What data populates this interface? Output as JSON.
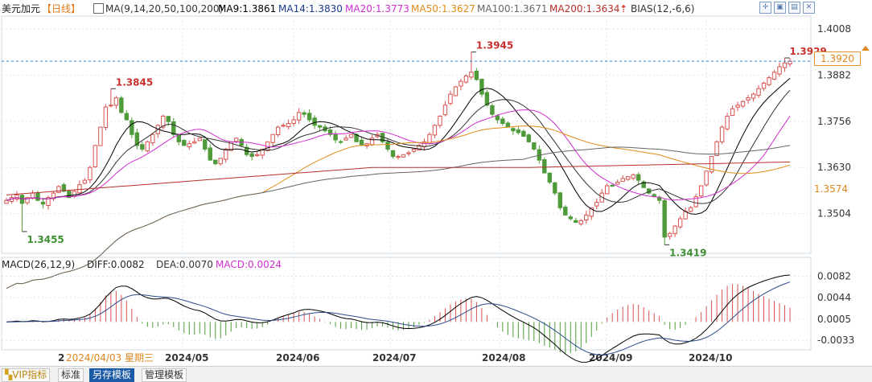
{
  "info": {
    "symbol": "美元加元",
    "period": "【日线】",
    "ma_params": "MA(9,14,20,50,100,200)",
    "ma9": "MA9:1.3861",
    "ma14": "MA14:1.3830",
    "ma20": "MA20:1.3773",
    "ma50": "MA50:1.3627",
    "ma100": "MA100:1.3671",
    "ma200": "MA200:1.3634",
    "bias": "BIAS(12,-6,6)"
  },
  "colors": {
    "up": "#d9534f",
    "down": "#4f9a3a",
    "ma9": "#000000",
    "ma14": "#333333",
    "ma20": "#d12fd0",
    "ma50": "#e08b17",
    "ma100": "#666666",
    "ma200": "#b5302a",
    "grid": "#dde6f0",
    "dash": "#2a7fd6"
  },
  "price_tag": "1.3920",
  "ma_tag": "1.3574",
  "price_ticks": [
    "1.4008",
    "1.3882",
    "1.3756",
    "1.3630",
    "1.3504"
  ],
  "annotations": [
    {
      "text": "1.3845",
      "kind": "high",
      "value": 1.3845
    },
    {
      "text": "1.3455",
      "kind": "low",
      "value": 1.3455
    },
    {
      "text": "1.3945",
      "kind": "high",
      "value": 1.3945
    },
    {
      "text": "1.3419",
      "kind": "low",
      "value": 1.3419
    },
    {
      "text": "1.3929",
      "kind": "high",
      "value": 1.3929
    }
  ],
  "macd": {
    "label": "MACD(26,12,9)",
    "diff": "DIFF:0.0082",
    "dea": "DEA:0.0070",
    "macd": "MACD:0.0024",
    "ticks": [
      "0.0082",
      "0.0044",
      "0.0005",
      "-0.0033"
    ]
  },
  "x_axis": {
    "start_label": "2",
    "start_date": "2024/04/03 星期三",
    "months": [
      "2024/05",
      "2024/06",
      "2024/07",
      "2024/08",
      "2024/09",
      "2024/10"
    ]
  },
  "footer": {
    "vip": "VIP指标",
    "standard": "标准",
    "save_template": "另存模板",
    "manage_template": "管理模板"
  },
  "chart_data": {
    "type": "candlestick",
    "title": "美元加元【日线】",
    "ylim": [
      1.34,
      1.4008
    ],
    "close_series": [
      1.354,
      1.3548,
      1.3555,
      1.3532,
      1.3548,
      1.356,
      1.354,
      1.353,
      1.3548,
      1.356,
      1.3578,
      1.3565,
      1.3548,
      1.3565,
      1.3583,
      1.3595,
      1.363,
      1.369,
      1.374,
      1.3795,
      1.38,
      1.382,
      1.378,
      1.376,
      1.372,
      1.369,
      1.368,
      1.37,
      1.372,
      1.3745,
      1.377,
      1.3755,
      1.372,
      1.37,
      1.369,
      1.3695,
      1.37,
      1.371,
      1.368,
      1.365,
      1.364,
      1.3655,
      1.368,
      1.37,
      1.371,
      1.369,
      1.3665,
      1.366,
      1.3665,
      1.368,
      1.37,
      1.372,
      1.374,
      1.3745,
      1.375,
      1.376,
      1.378,
      1.3775,
      1.376,
      1.3745,
      1.374,
      1.373,
      1.372,
      1.3705,
      1.37,
      1.371,
      1.372,
      1.37,
      1.369,
      1.3695,
      1.371,
      1.372,
      1.37,
      1.368,
      1.366,
      1.366,
      1.3665,
      1.367,
      1.368,
      1.369,
      1.37,
      1.372,
      1.3745,
      1.377,
      1.38,
      1.383,
      1.385,
      1.3865,
      1.388,
      1.389,
      1.387,
      1.383,
      1.38,
      1.3775,
      1.376,
      1.375,
      1.374,
      1.373,
      1.3725,
      1.3715,
      1.37,
      1.368,
      1.365,
      1.3615,
      1.359,
      1.356,
      1.352,
      1.35,
      1.349,
      1.348,
      1.3485,
      1.35,
      1.352,
      1.3535,
      1.356,
      1.358,
      1.358,
      1.359,
      1.36,
      1.3605,
      1.361,
      1.3595,
      1.3575,
      1.356,
      1.355,
      1.354,
      1.344,
      1.345,
      1.347,
      1.349,
      1.351,
      1.352,
      1.355,
      1.358,
      1.362,
      1.366,
      1.37,
      1.374,
      1.377,
      1.379,
      1.38,
      1.381,
      1.382,
      1.383,
      1.3845,
      1.386,
      1.3875,
      1.389,
      1.3905,
      1.3915,
      1.392
    ],
    "ma9": [],
    "note_series_colors": [
      "ma9 #000",
      "ma14 #333",
      "ma20 #d12fd0",
      "ma50 #e08b17",
      "ma100 #666",
      "ma200 #b5302a"
    ]
  }
}
